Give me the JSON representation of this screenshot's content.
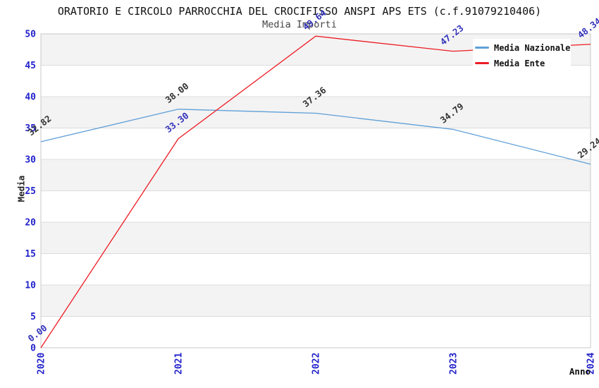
{
  "header": {
    "title": "ORATORIO E CIRCOLO PARROCCHIA DEL CROCIFISSO ANSPI APS ETS (c.f.91079210406)",
    "subtitle": "Media Importi"
  },
  "axes": {
    "y_title": "Media",
    "x_title": "Anno",
    "y_ticks": [
      "0",
      "5",
      "10",
      "15",
      "20",
      "25",
      "30",
      "35",
      "40",
      "45",
      "50"
    ],
    "x_ticks": [
      "2020",
      "2021",
      "2022",
      "2023",
      "2024"
    ]
  },
  "legend": {
    "items": [
      {
        "label": "Media Nazionale",
        "color": "#5f9fd8"
      },
      {
        "label": "Media Ente",
        "color": "#ed1c24"
      }
    ]
  },
  "chart_data": {
    "type": "line",
    "title": "Media Importi",
    "xlabel": "Anno",
    "ylabel": "Media",
    "x": [
      2020,
      2021,
      2022,
      2023,
      2024
    ],
    "series": [
      {
        "name": "Media Nazionale",
        "color": "#5f9fd8",
        "label_color": "#333333",
        "values": [
          32.82,
          38.0,
          37.36,
          34.79,
          29.24
        ],
        "point_labels": [
          "32.82",
          "38.00",
          "37.36",
          "34.79",
          "29.24"
        ]
      },
      {
        "name": "Media Ente",
        "color": "#ed1c24",
        "label_color": "#3333bb",
        "values": [
          0.0,
          33.3,
          49.64,
          47.23,
          48.34
        ],
        "point_labels": [
          "0.00",
          "33.30",
          "49.64",
          "47.23",
          "48.34"
        ]
      }
    ],
    "ylim": [
      0,
      50
    ],
    "ytick_step": 5,
    "grid": "horizontal",
    "bands_alternating": true,
    "legend_position": "top-right",
    "colors": {
      "tick_label": "#2222cc",
      "band": "#f3f3f3",
      "grid": "#dcdcdc",
      "border": "#c8c8c8",
      "title": "#111111",
      "subtitle": "#444444",
      "background": "#ffffff"
    }
  }
}
